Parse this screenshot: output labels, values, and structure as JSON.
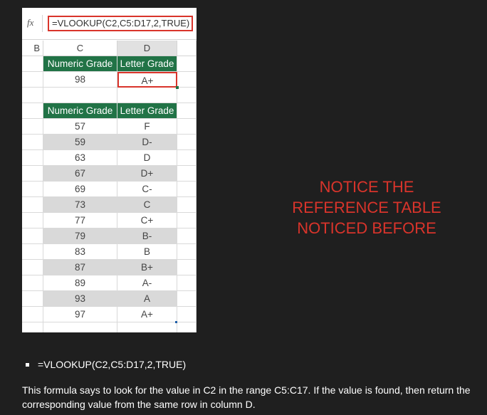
{
  "formula_bar": {
    "fx_label": "fx",
    "formula": "=VLOOKUP(C2,C5:D17,2,TRUE)"
  },
  "columns": {
    "b": "B",
    "c": "C",
    "d": "D"
  },
  "lookup": {
    "header_numeric": "Numeric Grade",
    "header_letter": "Letter Grade",
    "value": "98",
    "result": "A+"
  },
  "reference_table": {
    "header_numeric": "Numeric Grade",
    "header_letter": "Letter Grade",
    "rows": [
      {
        "numeric": "57",
        "letter": "F"
      },
      {
        "numeric": "59",
        "letter": "D-"
      },
      {
        "numeric": "63",
        "letter": "D"
      },
      {
        "numeric": "67",
        "letter": "D+"
      },
      {
        "numeric": "69",
        "letter": "C-"
      },
      {
        "numeric": "73",
        "letter": "C"
      },
      {
        "numeric": "77",
        "letter": "C+"
      },
      {
        "numeric": "79",
        "letter": "B-"
      },
      {
        "numeric": "83",
        "letter": "B"
      },
      {
        "numeric": "87",
        "letter": "B+"
      },
      {
        "numeric": "89",
        "letter": "A-"
      },
      {
        "numeric": "93",
        "letter": "A"
      },
      {
        "numeric": "97",
        "letter": "A+"
      }
    ]
  },
  "annotation": {
    "line1": "NOTICE THE",
    "line2": "REFERENCE TABLE",
    "line3": "NOTICED BEFORE"
  },
  "bullet": {
    "text": "=VLOOKUP(C2,C5:D17,2,TRUE)"
  },
  "explanation": "This formula says to look for the value in C2 in the range C5:C17. If the value is found, then return the corresponding value from the same row in column D.",
  "colors": {
    "header_green": "#217346",
    "highlight_red": "#d9342b",
    "shaded_row": "#d9d9d9"
  }
}
